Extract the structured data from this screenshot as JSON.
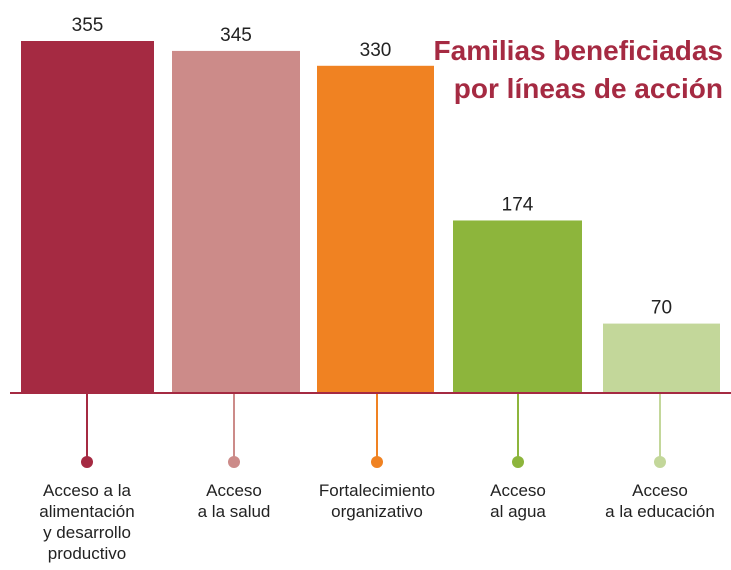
{
  "chart_data": {
    "type": "bar",
    "title": "Familias beneficiadas\npor líneas de acción",
    "categories": [
      "Acceso a la\nalimentación\ny desarrollo\nproductivo",
      "Acceso\na la salud",
      "Fortalecimiento\norganizativo",
      "Acceso\nal agua",
      "Acceso\na la educación"
    ],
    "values": [
      355,
      345,
      330,
      174,
      70
    ],
    "colors": [
      "#a52a42",
      "#cc8b89",
      "#f08222",
      "#8db53c",
      "#c3d79a"
    ]
  }
}
